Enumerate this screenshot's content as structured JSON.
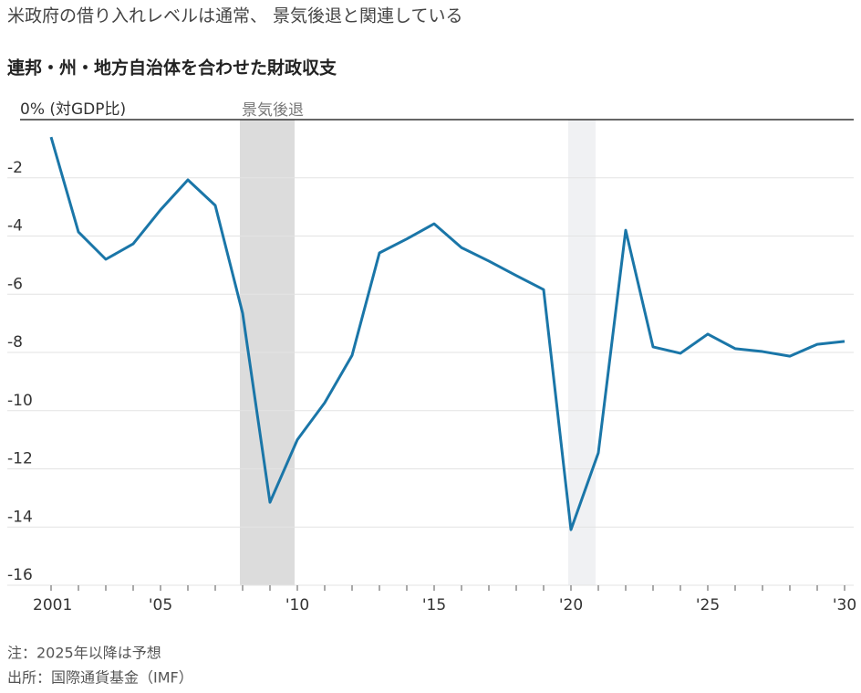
{
  "chart_data": {
    "type": "line",
    "title": "米政府の借り入れレベルは通常、 景気後退と関連している",
    "subtitle": "連邦・州・地方自治体を合わせた財政収支",
    "notes": [
      "注：2025年以降は予想",
      "出所：国際通貨基金（IMF）"
    ],
    "x": [
      2001,
      2002,
      2003,
      2004,
      2005,
      2006,
      2007,
      2008,
      2009,
      2010,
      2011,
      2012,
      2013,
      2014,
      2015,
      2016,
      2017,
      2018,
      2019,
      2020,
      2021,
      2022,
      2023,
      2024,
      2025,
      2026,
      2027,
      2028,
      2029,
      2030
    ],
    "series": [
      {
        "color": "#1a76a8",
        "values": [
          -0.6,
          -3.86,
          -4.8,
          -4.27,
          -3.1,
          -2.07,
          -2.95,
          -6.65,
          -13.15,
          -11.0,
          -9.73,
          -8.1,
          -4.58,
          -4.1,
          -3.58,
          -4.4,
          -4.86,
          -5.36,
          -5.84,
          -14.09,
          -11.45,
          -3.8,
          -7.81,
          -8.03,
          -7.37,
          -7.87,
          -7.97,
          -8.13,
          -7.72,
          -7.62
        ]
      }
    ],
    "recession_label": "景気後退",
    "recessions": [
      {
        "start": 2007.9,
        "end": 2009.9,
        "color": "#dcdcdc"
      },
      {
        "start": 2019.9,
        "end": 2020.9,
        "color": "#f0f1f3"
      }
    ],
    "xlim": [
      2001,
      2030
    ],
    "xticks": [
      {
        "value": 2001,
        "label": "2001"
      },
      {
        "value": 2005,
        "label": "'05"
      },
      {
        "value": 2010,
        "label": "'10"
      },
      {
        "value": 2015,
        "label": "'15"
      },
      {
        "value": 2020,
        "label": "'20"
      },
      {
        "value": 2025,
        "label": "'25"
      },
      {
        "value": 2030,
        "label": "'30"
      }
    ],
    "ylim": [
      -16,
      0
    ],
    "yticks": [
      {
        "value": 0,
        "label": "0% (対GDP比)"
      },
      -2,
      -4,
      -6,
      -8,
      -10,
      -12,
      -14,
      -16
    ],
    "grid": true
  }
}
